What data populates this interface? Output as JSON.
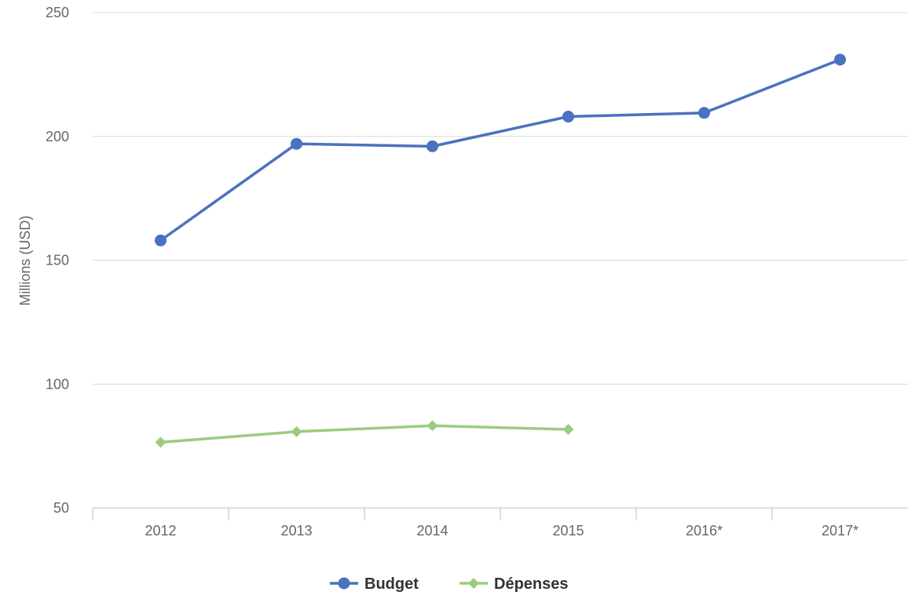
{
  "chart_data": {
    "type": "line",
    "title": "",
    "xlabel": "",
    "ylabel": "Millions (USD)",
    "categories": [
      "2012",
      "2013",
      "2014",
      "2015",
      "2016*",
      "2017*"
    ],
    "ylim": [
      50,
      250
    ],
    "yticks": [
      50,
      100,
      150,
      200,
      250
    ],
    "grid": true,
    "legend_position": "bottom-center",
    "series": [
      {
        "name": "Budget",
        "color": "#4a72c0",
        "marker": "circle",
        "values": [
          158,
          197,
          196,
          208,
          209.5,
          231
        ]
      },
      {
        "name": "Dépenses",
        "color": "#9ccc7e",
        "marker": "diamond",
        "values": [
          76.5,
          80.8,
          83.2,
          81.7,
          null,
          null
        ]
      }
    ]
  }
}
